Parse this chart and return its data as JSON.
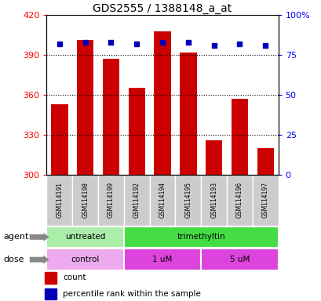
{
  "title": "GDS2555 / 1388148_a_at",
  "samples": [
    "GSM114191",
    "GSM114198",
    "GSM114199",
    "GSM114192",
    "GSM114194",
    "GSM114195",
    "GSM114193",
    "GSM114196",
    "GSM114197"
  ],
  "bar_values": [
    353,
    401,
    387,
    365,
    408,
    392,
    326,
    357,
    320
  ],
  "percentile_values": [
    82,
    83,
    83,
    82,
    83,
    83,
    81,
    82,
    81
  ],
  "ylim_left": [
    300,
    420
  ],
  "ylim_right": [
    0,
    100
  ],
  "yticks_left": [
    300,
    330,
    360,
    390,
    420
  ],
  "yticks_right": [
    0,
    25,
    50,
    75,
    100
  ],
  "bar_color": "#cc0000",
  "dot_color": "#0000bb",
  "agent_labels": [
    {
      "text": "untreated",
      "start": 0,
      "end": 3,
      "color": "#aaeeaa"
    },
    {
      "text": "trimethyltin",
      "start": 3,
      "end": 9,
      "color": "#44dd44"
    }
  ],
  "dose_labels": [
    {
      "text": "control",
      "start": 0,
      "end": 3,
      "color": "#eeaaee"
    },
    {
      "text": "1 uM",
      "start": 3,
      "end": 6,
      "color": "#dd44dd"
    },
    {
      "text": "5 uM",
      "start": 6,
      "end": 9,
      "color": "#dd44dd"
    }
  ],
  "legend_count_color": "#cc0000",
  "legend_dot_color": "#0000bb",
  "xticklabel_bg": "#cccccc",
  "agent_row_label": "agent",
  "dose_row_label": "dose"
}
